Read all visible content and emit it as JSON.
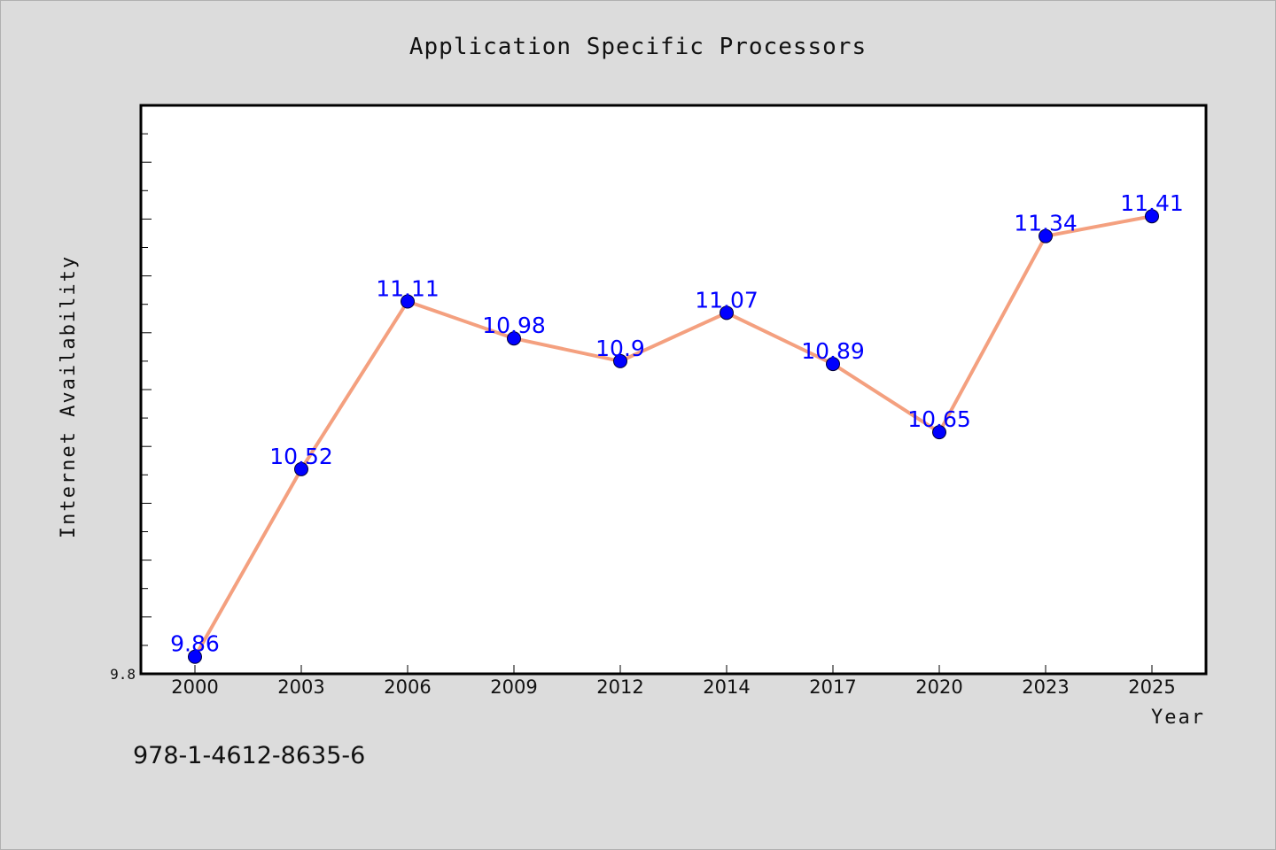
{
  "chart_data": {
    "type": "line",
    "title": "Application Specific Processors",
    "xlabel": "Year",
    "ylabel": "Internet Availability",
    "categories": [
      "2000",
      "2003",
      "2006",
      "2009",
      "2012",
      "2014",
      "2017",
      "2020",
      "2023",
      "2025"
    ],
    "values": [
      9.86,
      10.52,
      11.11,
      10.98,
      10.9,
      11.07,
      10.89,
      10.65,
      11.34,
      11.41
    ],
    "data_labels": [
      "9.86",
      "10.52",
      "11.11",
      "10.98",
      "10.9",
      "11.07",
      "10.89",
      "10.65",
      "11.34",
      "11.41"
    ],
    "ylim": [
      9.8,
      11.8
    ],
    "y_tick_labels": [
      "9.8"
    ],
    "grid": false,
    "legend": "none",
    "colors": {
      "line": "#f4a07f",
      "marker": "#0000ff",
      "data_label": "#0000ff",
      "plot_background": "#ffffff",
      "figure_background": "#dcdcdc"
    }
  },
  "footnote": "978-1-4612-8635-6"
}
